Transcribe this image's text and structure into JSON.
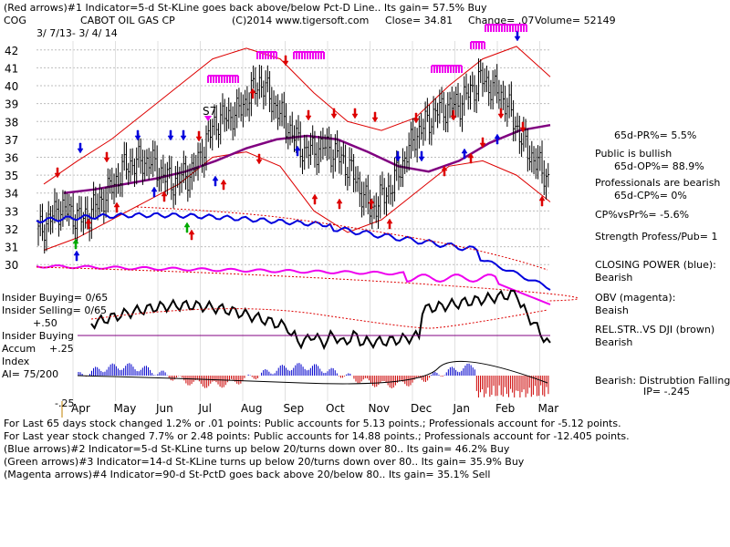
{
  "header": {
    "line1": "(Red arrows)#1 Indicator=5-d St-KLine goes back above/below Pct-D Line.. Its gain= 57.5% Buy",
    "ticker": "COG",
    "company": "CABOT OIL GAS CP",
    "copyright": "(C)2014 www.tigersoft.com",
    "close": "Close=  34.81",
    "change": "Change= .07",
    "volume": "Volume= 52149",
    "daterange": "3/ 7/13- 3/ 4/ 14"
  },
  "left_labels": {
    "insider_buying": "Insider Buying= 0/65",
    "insider_selling": "Insider Selling= 0/65",
    "insider_buying2": "Insider Buying",
    "accum": "Accum",
    "index": "Index",
    "ai": "AI= 75/200",
    "p50": "+.50",
    "p25": "+.25",
    "m25": "-.25"
  },
  "right_panel": {
    "pr": "65d-PR%= 5.5%",
    "public": "Public is bullish",
    "op": "65d-OP%= 88.9%",
    "prof": "Professionals are bearish",
    "cp": "65d-CP%= 0%",
    "cpvspr": "CP%vsPr%= -5.6%",
    "strength": "Strength Profess/Pub= 1",
    "closing_power": "CLOSING POWER (blue):",
    "closing_power_val": "Bearish",
    "obv": "OBV (magenta):",
    "obv_val": "Beaish",
    "relstr": "REL.STR..VS DJI (brown)",
    "relstr_val": "Bearish",
    "bearish": "Bearish:  Distrubtion Falling",
    "ip": "IP= -.245"
  },
  "annotation": "S7",
  "bottom": {
    "line1": "For Last 65 days stock changed  1.2% or  .01 points:  Public accounts for  5.13 points.;  Professionals account for -5.12 points.",
    "line2": "For Last year stock changed  7.7% or  2.48 points:  Public accounts for  14.88 points.;  Professionals account for -12.405 points.",
    "line3": "(Blue arrows)#2 Indicator=5-d St-KLine turns up below 20/turns down over 80.. Its gain= 46.2% Buy",
    "line4": "(Green arrows)#3 Indicator=14-d St-KLine turns up below 20/turns down over 80.. Its gain= 35.9% Buy",
    "line5": "(Magenta arrows)#4 Indicator=90-d St-PctD goes back above 20/below 80.. Its gain= 35.1% Sell"
  },
  "chart_data": {
    "type": "line",
    "x_labels": [
      "Apr",
      "May",
      "Jun",
      "Jul",
      "Aug",
      "Sep",
      "Oct",
      "Nov",
      "Dec",
      "Jan",
      "Feb",
      "Mar"
    ],
    "y_ticks": [
      42,
      41,
      40,
      39,
      38,
      37,
      36,
      35,
      34,
      33,
      32,
      31,
      30
    ],
    "ylim": [
      29.5,
      42.5
    ],
    "grid": true,
    "colors": {
      "price": "#000000",
      "bands": "#dd0000",
      "ma": "#800080",
      "closing_power": "#0000dd",
      "obv": "#ee00ee",
      "accum_red": "#cc0000",
      "accum_blue": "#0000cc",
      "insider": "#800080"
    },
    "price_series": [
      [
        "Mar",
        31.8
      ],
      [
        "Apr",
        33.2
      ],
      [
        "Apr",
        32.5
      ],
      [
        "May",
        33.8
      ],
      [
        "May",
        35.6
      ],
      [
        "Jun",
        35.8
      ],
      [
        "Jun",
        34.6
      ],
      [
        "Jul",
        35.2
      ],
      [
        "Jul",
        38.0
      ],
      [
        "Aug",
        38.5
      ],
      [
        "Aug",
        40.3
      ],
      [
        "Sep",
        38.2
      ],
      [
        "Sep",
        36.3
      ],
      [
        "Oct",
        36.6
      ],
      [
        "Oct",
        35.5
      ],
      [
        "Nov",
        33.0
      ],
      [
        "Nov",
        34.5
      ],
      [
        "Dec",
        37.2
      ],
      [
        "Dec",
        38.6
      ],
      [
        "Jan",
        39.0
      ],
      [
        "Jan",
        40.4
      ],
      [
        "Feb",
        39.3
      ],
      [
        "Feb",
        36.5
      ],
      [
        "Feb",
        34.81
      ]
    ],
    "ma_series": [
      34.0,
      34.2,
      34.5,
      34.8,
      35.2,
      35.8,
      36.5,
      37.0,
      37.2,
      37.0,
      36.3,
      35.5,
      35.2,
      35.8,
      36.8,
      37.5,
      37.8
    ],
    "upper_band": [
      34.5,
      35.8,
      37.0,
      38.5,
      40.0,
      41.5,
      42.1,
      41.5,
      39.6,
      38.0,
      37.5,
      38.2,
      40.0,
      41.5,
      42.2,
      40.5
    ],
    "lower_band": [
      30.8,
      31.5,
      32.5,
      33.5,
      34.5,
      36.0,
      36.3,
      35.5,
      33.0,
      31.8,
      32.5,
      34.0,
      35.5,
      35.8,
      35.0,
      33.5
    ]
  }
}
